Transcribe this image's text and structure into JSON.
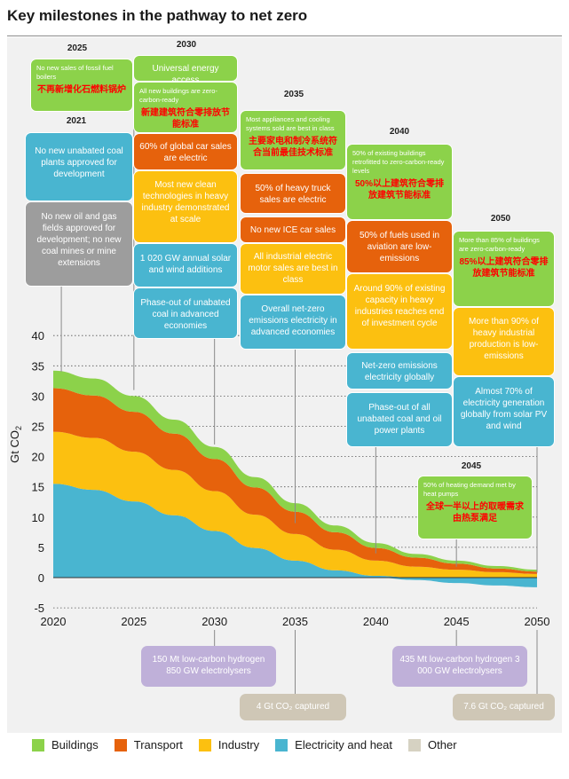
{
  "title": "Key milestones in the pathway to net zero",
  "colors": {
    "buildings": "#8cd24a",
    "transport": "#e6620c",
    "industry": "#fcc010",
    "electricity": "#49b5d0",
    "other": "#d6d2c2"
  },
  "chart_data": {
    "type": "area",
    "stacked": true,
    "title": "Key milestones in the pathway to net zero",
    "xlabel": "",
    "ylabel": "Gt CO",
    "ylabel_subscript": "2",
    "x": [
      2020,
      2022.5,
      2025,
      2027.5,
      2030,
      2032.5,
      2035,
      2037.5,
      2040,
      2042.5,
      2045,
      2047.5,
      2050
    ],
    "x_ticks": [
      "2020",
      "2025",
      "2030",
      "2035",
      "2040",
      "2045",
      "2050"
    ],
    "y_ticks": [
      "-5",
      "0",
      "5",
      "10",
      "15",
      "20",
      "25",
      "30",
      "35",
      "40"
    ],
    "ylim": [
      -5,
      40
    ],
    "xlim": [
      2020,
      2050
    ],
    "series": [
      {
        "name": "Other",
        "key": "other",
        "values": [
          2.0,
          1.8,
          1.6,
          1.4,
          1.1,
          0.8,
          0.5,
          0.2,
          0.0,
          -0.3,
          -0.6,
          -0.9,
          -1.2
        ]
      },
      {
        "name": "Electricity and heat",
        "key": "electricity",
        "values": [
          13.5,
          12.7,
          11.0,
          8.9,
          6.6,
          4.1,
          2.3,
          1.0,
          0.3,
          -0.1,
          -0.3,
          -0.4,
          -0.4
        ]
      },
      {
        "name": "Industry",
        "key": "industry",
        "values": [
          8.6,
          8.6,
          8.2,
          7.5,
          6.6,
          5.5,
          4.4,
          3.4,
          2.5,
          1.8,
          1.3,
          0.9,
          0.6
        ]
      },
      {
        "name": "Transport",
        "key": "transport",
        "values": [
          7.2,
          7.0,
          6.6,
          6.0,
          5.3,
          4.5,
          3.7,
          2.9,
          2.1,
          1.5,
          1.0,
          0.6,
          0.4
        ]
      },
      {
        "name": "Buildings",
        "key": "buildings",
        "values": [
          2.9,
          2.8,
          2.6,
          2.3,
          2.0,
          1.7,
          1.4,
          1.1,
          0.8,
          0.6,
          0.5,
          0.4,
          0.3
        ]
      }
    ],
    "legend": [
      "Buildings",
      "Transport",
      "Industry",
      "Electricity and heat",
      "Other"
    ],
    "legend_position": "bottom"
  },
  "years": {
    "y2021": "2021",
    "y2025": "2025",
    "y2030": "2030",
    "y2035": "2035",
    "y2040": "2040",
    "y2045": "2045",
    "y2050": "2050"
  },
  "milestones": {
    "m2021_coal": "No new unabated coal plants approved for development",
    "m2021_oil": "No new oil and gas fields approved for development; no new coal mines or mine extensions",
    "m2025_boilers_en": "No new sales of fossil fuel boilers",
    "m2025_boilers_zh": "不再新增化石燃料锅炉",
    "m2030_access": "Universal energy access",
    "m2030_buildings_en": "All new buildings are zero-carbon-ready",
    "m2030_buildings_zh": "新建建筑符合零排放节能标准",
    "m2030_cars": "60% of global car sales are electric",
    "m2030_industry": "Most new clean technologies in heavy industry demonstrated at scale",
    "m2030_solar": "1 020 GW annual solar and wind additions",
    "m2030_coal": "Phase-out of unabated coal in advanced economies",
    "m2030_hydrogen": "150 Mt low-carbon hydrogen 850 GW electrolysers",
    "m2035_appliances_en": "Most appliances and cooling systems sold are best in class",
    "m2035_appliances_zh": "主要家电和制冷系统符合当前最佳技术标准",
    "m2035_trucks": "50% of heavy truck sales are electric",
    "m2035_ice": "No new ICE car sales",
    "m2035_motors": "All industrial electric motor sales are best in class",
    "m2035_electricity": "Overall net-zero emissions electricity in advanced economies",
    "m2035_captured": "4 Gt CO₂ captured",
    "m2040_buildings_en": "50% of existing buildings retrofitted to zero-carbon-ready levels",
    "m2040_buildings_zh": "50%以上建筑符合零排放建筑节能标准",
    "m2040_aviation": "50% of fuels used in aviation are low-emissions",
    "m2040_industry": "Around 90% of existing capacity in heavy industries reaches end of investment cycle",
    "m2040_electricity": "Net-zero emissions electricity globally",
    "m2040_coal": "Phase-out of all unabated coal and oil power plants",
    "m2045_heat_en": "50% of heating demand met by heat pumps",
    "m2045_heat_zh": "全球一半以上的取暖需求由热泵满足",
    "m2045_hydrogen": "435 Mt low-carbon hydrogen 3 000 GW electrolysers",
    "m2050_buildings_en": "More than 85% of buildings are zero-carbon-ready",
    "m2050_buildings_zh": "85%以上建筑符合零排放建筑节能标准",
    "m2050_industry": "More than 90% of heavy industrial production is low-emissions",
    "m2050_solar": "Almost 70% of electricity generation globally from solar PV and wind",
    "m2050_captured": "7.6 Gt CO₂ captured"
  }
}
